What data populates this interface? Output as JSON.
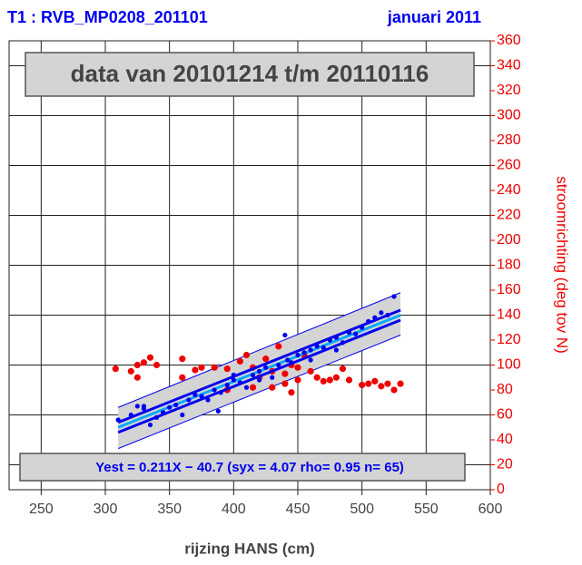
{
  "chart_data": {
    "type": "scatter",
    "title": "T1 : RVB_MP0208_201101",
    "subtitle": "januari 2011",
    "period_label": "data van 20101214 t/m 20110116",
    "equation_label": "Yest = 0.211X − 40.7 (syx = 4.07 rho= 0.95 n= 65)",
    "x_label": "rijzing HANS (cm)",
    "y_label": "stroomrichting (deg tov N)",
    "y_axis_side": "right",
    "xlim": [
      225,
      600
    ],
    "xticks": [
      250,
      300,
      350,
      400,
      450,
      500,
      550,
      600
    ],
    "ylim": [
      0,
      360
    ],
    "yticks": [
      0,
      20,
      40,
      60,
      80,
      100,
      120,
      140,
      160,
      180,
      200,
      220,
      240,
      260,
      280,
      300,
      320,
      340,
      360
    ],
    "grid": true,
    "band": {
      "x": [
        310,
        530
      ],
      "lower": [
        33,
        124
      ],
      "upper": [
        66,
        158
      ],
      "color": "#d4d4d4",
      "edge_color": "#0000ee"
    },
    "lines": [
      {
        "x": [
          310,
          530
        ],
        "y": [
          50,
          140
        ],
        "color": "#00aaff"
      },
      {
        "x": [
          310,
          530
        ],
        "y": [
          46,
          136
        ],
        "color": "#0000ee"
      },
      {
        "x": [
          310,
          530
        ],
        "y": [
          54,
          144
        ],
        "color": "#0000ee"
      }
    ],
    "series": [
      {
        "color": "#0000ee",
        "x": [
          310,
          320,
          325,
          330,
          335,
          340,
          345,
          355,
          360,
          365,
          370,
          375,
          380,
          385,
          388,
          390,
          395,
          400,
          405,
          410,
          415,
          420,
          425,
          430,
          435,
          440,
          442,
          445,
          450,
          455,
          460,
          465,
          470,
          475,
          480,
          485,
          490,
          495,
          500,
          505,
          510,
          515,
          520,
          525,
          330,
          350,
          400,
          420,
          460,
          480
        ],
        "values": [
          56,
          60,
          67,
          65,
          52,
          58,
          62,
          68,
          60,
          72,
          76,
          75,
          72,
          80,
          63,
          78,
          84,
          88,
          86,
          82,
          92,
          95,
          98,
          90,
          100,
          124,
          104,
          102,
          108,
          110,
          112,
          115,
          114,
          120,
          122,
          118,
          126,
          125,
          130,
          135,
          138,
          142,
          140,
          155,
          67,
          66,
          92,
          88,
          104,
          112
        ]
      },
      {
        "color": "#ee0000",
        "x": [
          308,
          320,
          325,
          330,
          335,
          340,
          325,
          360,
          360,
          370,
          375,
          385,
          395,
          405,
          410,
          415,
          420,
          425,
          430,
          435,
          440,
          440,
          445,
          450,
          450,
          455,
          460,
          465,
          470,
          475,
          480,
          485,
          490,
          500,
          505,
          510,
          515,
          520,
          525,
          530,
          445,
          430,
          415,
          395
        ],
        "values": [
          97,
          95,
          100,
          102,
          106,
          100,
          90,
          105,
          90,
          96,
          98,
          98,
          97,
          103,
          108,
          98,
          90,
          105,
          95,
          115,
          93,
          85,
          100,
          88,
          98,
          108,
          95,
          90,
          87,
          88,
          90,
          97,
          88,
          84,
          85,
          87,
          83,
          85,
          80,
          85,
          78,
          82,
          82,
          80
        ]
      }
    ]
  }
}
